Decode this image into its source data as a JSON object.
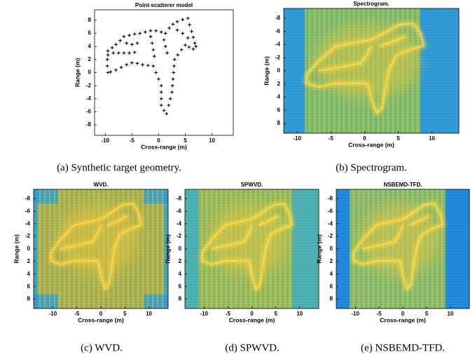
{
  "chart_data": [
    {
      "type": "scatter",
      "title": "Point-scatterer model",
      "xlabel": "Cross-range (m)",
      "ylabel": "Range (m)",
      "caption": "(a) Synthetic target geometry.",
      "color": "#000000",
      "xlim": [
        -12,
        14
      ],
      "ylim": [
        -9.6,
        9.6
      ],
      "xticks": [
        -10,
        -5,
        0,
        5,
        10
      ],
      "yticks": [
        -8,
        -6,
        -4,
        -2,
        0,
        2,
        4,
        6,
        8
      ],
      "x": [
        -9.5,
        -8.7,
        -8,
        -7.2,
        -6.5,
        -5.5,
        -4.5,
        -3.5,
        -2.5,
        -1.5,
        -0.5,
        0.5,
        1.3,
        2,
        2.7,
        3.5,
        4.5,
        5.5,
        5.8,
        6.2,
        6.5,
        6.8,
        7,
        6.5,
        5.7,
        5,
        4.3,
        3.6,
        3,
        2.9,
        2.8,
        2.7,
        2.6,
        2.5,
        2.2,
        1.9,
        1.5,
        1,
        0.5,
        0.5,
        0.5,
        0.5,
        0,
        -0.5,
        -1,
        -2,
        -3,
        -4,
        -5,
        -6,
        -7,
        -8,
        -9,
        -9.5,
        -9.6,
        -9.6,
        -9.5,
        -8.5,
        -7.5,
        -6.5,
        -5.5,
        -4.5,
        -1.5,
        -1.2,
        -1,
        -0.8,
        1,
        1.3,
        1.6,
        3.5,
        4.5,
        5.5,
        -6,
        -5,
        -4
      ],
      "y": [
        3.3,
        3.8,
        4.3,
        4.9,
        5.5,
        5.7,
        5.9,
        6,
        6.2,
        6.4,
        6.4,
        6.2,
        6,
        6.8,
        7.4,
        7.8,
        8.1,
        8.3,
        7.3,
        6.3,
        5.4,
        4.5,
        4,
        3.6,
        3.9,
        4.2,
        3.5,
        2.7,
        2,
        1,
        0,
        -1,
        -2,
        -3,
        -4,
        -5,
        -6.3,
        -5.8,
        -5,
        -4,
        -3,
        -2,
        -1,
        0,
        1,
        1.1,
        1.2,
        1.4,
        1.5,
        1.2,
        0.8,
        0.4,
        0.1,
        0,
        1,
        2,
        2.7,
        3,
        3,
        3,
        3,
        3.1,
        5.5,
        4.5,
        3.5,
        2.5,
        5,
        4,
        3,
        6.5,
        6,
        5.3,
        4.5,
        4.3,
        4.5
      ]
    },
    {
      "type": "image",
      "title": "Spectrogram.",
      "xlabel": "Cross-range (m)",
      "ylabel": "Range (m)",
      "caption": "(b) Spectrogram.",
      "xlim": [
        -12,
        14
      ],
      "ylim": [
        9.5,
        -9.5
      ],
      "xticks": [
        -10,
        -5,
        0,
        5,
        10
      ],
      "yticks": [
        -8,
        -6,
        -4,
        -2,
        0,
        2,
        4,
        6,
        8
      ]
    },
    {
      "type": "image",
      "title": "WVD.",
      "xlabel": "Cross-range (m)",
      "ylabel": "Range (m)",
      "caption": "(c) WVD.",
      "xlim": [
        -14,
        14
      ],
      "ylim": [
        9.5,
        -9.5
      ],
      "xticks": [
        -10,
        -5,
        0,
        5,
        10
      ],
      "yticks": [
        -8,
        -6,
        -4,
        -2,
        0,
        2,
        4,
        6,
        8
      ]
    },
    {
      "type": "image",
      "title": "SPWVD.",
      "xlabel": "Cross-range (m)",
      "ylabel": "Range (m)",
      "caption": "(d) SPWVD.",
      "xlim": [
        -14,
        14
      ],
      "ylim": [
        9.5,
        -9.5
      ],
      "xticks": [
        -10,
        -5,
        0,
        5,
        10
      ],
      "yticks": [
        -8,
        -6,
        -4,
        -2,
        0,
        2,
        4,
        6,
        8
      ]
    },
    {
      "type": "image",
      "title": "NSBEMD-TFD.",
      "xlabel": "Cross-range (m)",
      "ylabel": "Range (m)",
      "caption": "(e) NSBEMD-TFD.",
      "xlim": [
        -14,
        14
      ],
      "ylim": [
        9.5,
        -9.5
      ],
      "xticks": [
        -10,
        -5,
        0,
        5,
        10
      ],
      "yticks": [
        -8,
        -6,
        -4,
        -2,
        0,
        2,
        4,
        6,
        8
      ]
    }
  ]
}
